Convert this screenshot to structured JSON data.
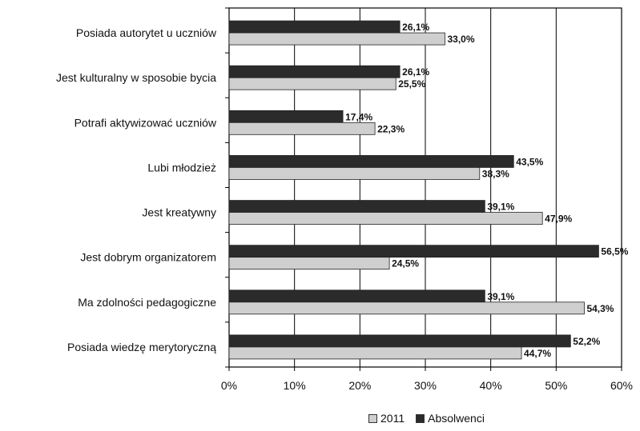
{
  "chart_data": {
    "type": "bar",
    "orientation": "horizontal",
    "categories": [
      "Posiada autorytet u uczniów",
      "Jest kulturalny w sposobie bycia",
      "Potrafi aktywizować uczniów",
      "Lubi młodzież",
      "Jest kreatywny",
      "Jest dobrym organizatorem",
      "Ma zdolności pedagogiczne",
      "Posiada wiedzę merytoryczną"
    ],
    "series": [
      {
        "name": "Absolwenci",
        "color": "#2b2b2b",
        "values": [
          26.1,
          26.1,
          17.4,
          43.5,
          39.1,
          56.5,
          39.1,
          52.2
        ],
        "labels": [
          "26,1%",
          "26,1%",
          "17,4%",
          "43,5%",
          "39,1%",
          "56,5%",
          "39,1%",
          "52,2%"
        ]
      },
      {
        "name": "2011",
        "color": "#cfcfcf",
        "values": [
          33.0,
          25.5,
          22.3,
          38.3,
          47.9,
          24.5,
          54.3,
          44.7
        ],
        "labels": [
          "33,0%",
          "25,5%",
          "22,3%",
          "38,3%",
          "47,9%",
          "24,5%",
          "54,3%",
          "44,7%"
        ]
      }
    ],
    "xlim": [
      0,
      60
    ],
    "xticks": [
      "0%",
      "10%",
      "20%",
      "30%",
      "40%",
      "50%",
      "60%"
    ],
    "grid": true,
    "legend_position": "bottom"
  },
  "legend": {
    "items": [
      {
        "label": "2011",
        "color": "#cfcfcf"
      },
      {
        "label": "Absolwenci",
        "color": "#2b2b2b"
      }
    ]
  }
}
